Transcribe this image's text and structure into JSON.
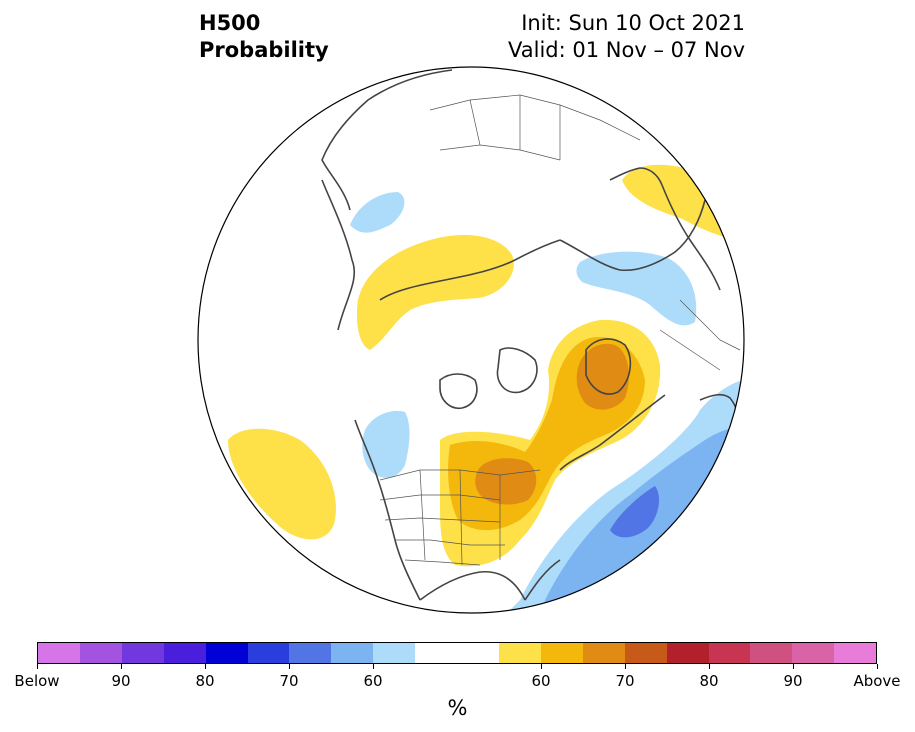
{
  "title": {
    "left_line1": "H500",
    "left_line2": "Probability",
    "right_line1": "Init: Sun 10 Oct 2021",
    "right_line2": "Valid: 01 Nov – 07 Nov"
  },
  "colorbar": {
    "colors": [
      "#d675e8",
      "#a453e0",
      "#7038de",
      "#4a1edd",
      "#0000d7",
      "#2a3ddd",
      "#5275e6",
      "#7cb3f1",
      "#addcfb",
      "#ffffff",
      "#ffffff",
      "#fee048",
      "#f4b80c",
      "#e08c14",
      "#c75a18",
      "#b2202b",
      "#c83553",
      "#d0517f",
      "#da63a8",
      "#e97cd9"
    ],
    "tick_labels": [
      "Below",
      "90",
      "80",
      "70",
      "60",
      "60",
      "70",
      "80",
      "90",
      "Above"
    ],
    "unit_label": "%"
  },
  "map": {
    "projection": "north-polar-stereographic",
    "anomaly_regions": [
      {
        "name": "Pacific / Alaska-west above-normal",
        "category": "above",
        "level": "50-60",
        "color": "#fee048"
      },
      {
        "name": "Siberia above-normal band",
        "category": "above",
        "level": "50-60",
        "color": "#fee048"
      },
      {
        "name": "Central North America above-normal",
        "category": "above",
        "level": "60-70",
        "color": "#e08c14"
      },
      {
        "name": "Greenland / North Atlantic above-normal",
        "category": "above",
        "level": "60-70",
        "color": "#e08c14"
      },
      {
        "name": "Scandinavia above-normal",
        "category": "above",
        "level": "50-60",
        "color": "#fee048"
      },
      {
        "name": "Western Europe / Atlantic below-normal",
        "category": "below",
        "level": "70",
        "color": "#5275e6"
      },
      {
        "name": "Northern Europe below-normal",
        "category": "below",
        "level": "60",
        "color": "#addcfb"
      },
      {
        "name": "Alaska below-normal",
        "category": "below",
        "level": "60",
        "color": "#addcfb"
      },
      {
        "name": "Western Siberia below-normal",
        "category": "below",
        "level": "60",
        "color": "#addcfb"
      }
    ]
  }
}
